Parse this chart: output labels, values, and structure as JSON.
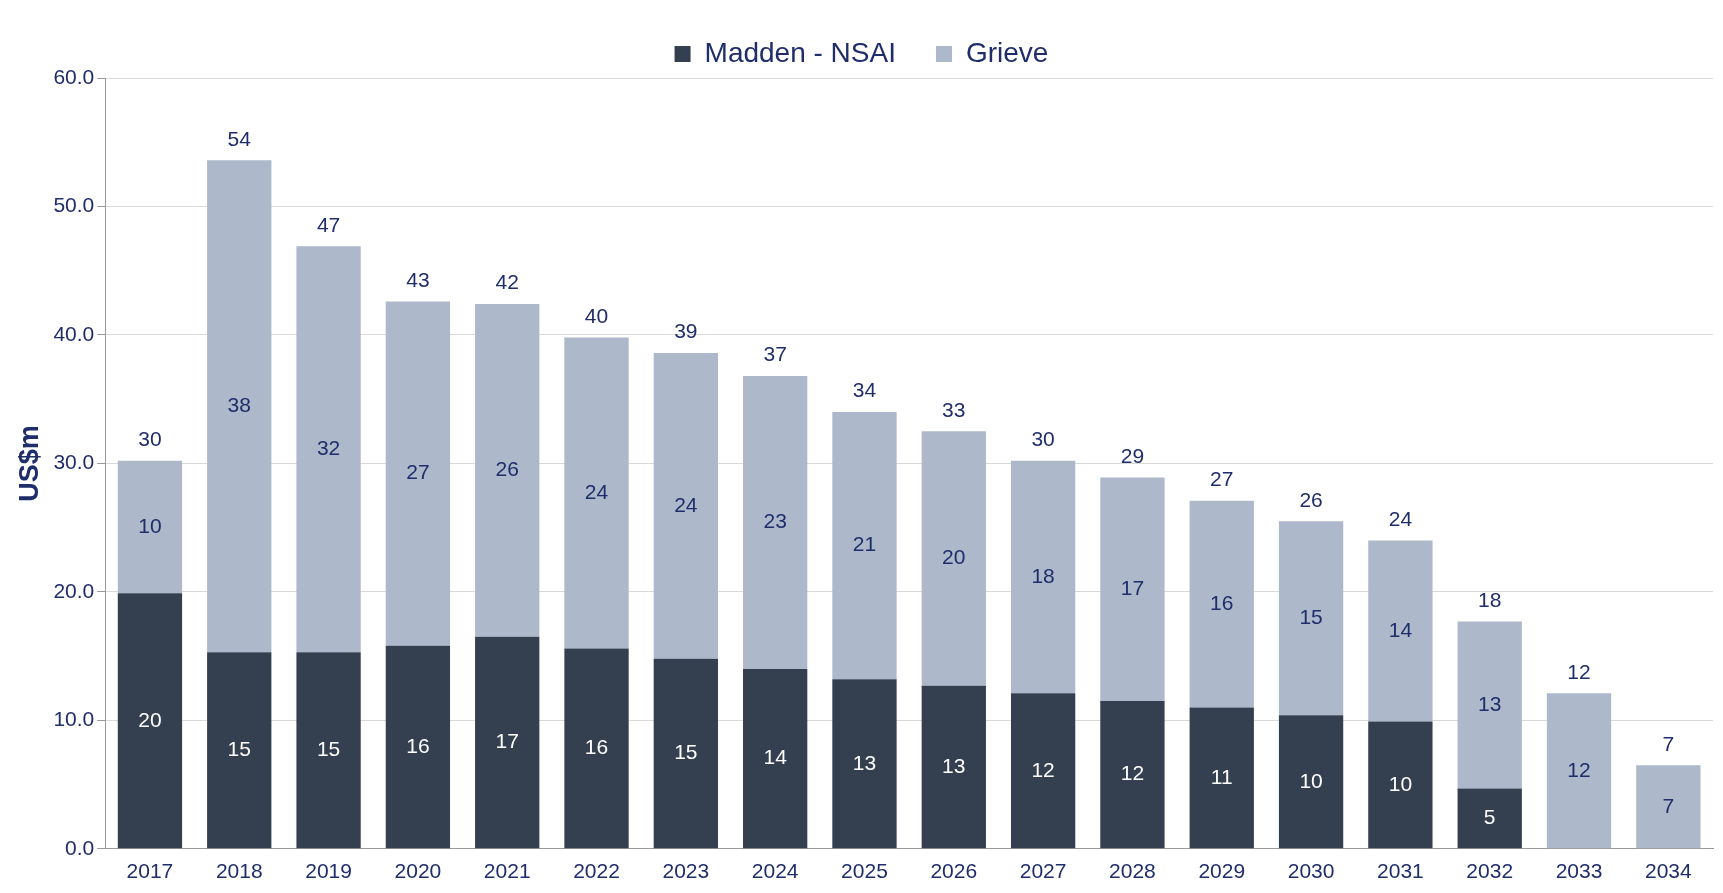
{
  "chart_data": {
    "type": "bar",
    "stacked": true,
    "ylabel": "US$m",
    "categories": [
      "2017",
      "2018",
      "2019",
      "2020",
      "2021",
      "2022",
      "2023",
      "2024",
      "2025",
      "2026",
      "2027",
      "2028",
      "2029",
      "2030",
      "2031",
      "2032",
      "2033",
      "2034"
    ],
    "series": [
      {
        "name": "Madden - NSAI",
        "color": "#343f50",
        "values": [
          19.9,
          15.3,
          15.3,
          15.8,
          16.5,
          15.6,
          14.8,
          14.0,
          13.2,
          12.7,
          12.1,
          11.5,
          11.0,
          10.4,
          9.9,
          4.7,
          null,
          null
        ],
        "value_labels": [
          "20",
          "15",
          "15",
          "16",
          "17",
          "16",
          "15",
          "14",
          "13",
          "13",
          "12",
          "12",
          "11",
          "10",
          "10",
          "5",
          null,
          null
        ]
      },
      {
        "name": "Grieve",
        "color": "#adb8ca",
        "values": [
          10.3,
          38.3,
          31.6,
          26.8,
          25.9,
          24.2,
          23.8,
          22.8,
          20.8,
          19.8,
          18.1,
          17.4,
          16.1,
          15.1,
          14.1,
          13.0,
          12.1,
          6.5
        ],
        "value_labels": [
          "10",
          "38",
          "32",
          "27",
          "26",
          "24",
          "24",
          "23",
          "21",
          "20",
          "18",
          "17",
          "16",
          "15",
          "14",
          "13",
          "12",
          "7"
        ]
      }
    ],
    "totals": [
      "30",
      "54",
      "47",
      "43",
      "42",
      "40",
      "39",
      "37",
      "34",
      "33",
      "30",
      "29",
      "27",
      "26",
      "24",
      "18",
      "12",
      "7"
    ],
    "ylim": [
      0,
      60
    ],
    "yticks": [
      {
        "value": 0,
        "label": "0.0"
      },
      {
        "value": 10,
        "label": "10.0"
      },
      {
        "value": 20,
        "label": "20.0"
      },
      {
        "value": 30,
        "label": "30.0"
      },
      {
        "value": 40,
        "label": "40.0"
      },
      {
        "value": 50,
        "label": "50.0"
      },
      {
        "value": 60,
        "label": "60.0"
      }
    ],
    "grid": "y",
    "legend": "top"
  }
}
